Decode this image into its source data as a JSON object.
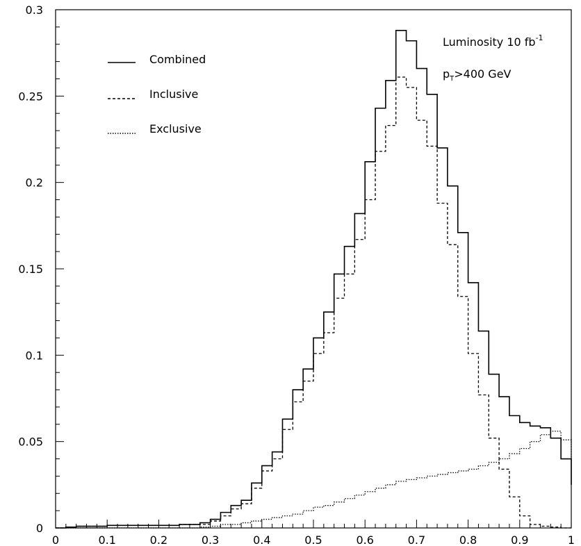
{
  "chart_data": {
    "type": "line",
    "step": true,
    "title": "",
    "xlabel": "",
    "ylabel": "",
    "xlim": [
      0,
      1
    ],
    "ylim": [
      0,
      0.3
    ],
    "grid": false,
    "xticks": [
      "0",
      "0.1",
      "0.2",
      "0.3",
      "0.4",
      "0.5",
      "0.6",
      "0.7",
      "0.8",
      "0.9",
      "1"
    ],
    "yticks": [
      "0",
      "0.05",
      "0.1",
      "0.15",
      "0.2",
      "0.25",
      "0.3"
    ],
    "bin_edges": [
      0,
      0.02,
      0.04,
      0.06,
      0.08,
      0.1,
      0.12,
      0.14,
      0.16,
      0.18,
      0.2,
      0.22,
      0.24,
      0.26,
      0.28,
      0.3,
      0.32,
      0.34,
      0.36,
      0.38,
      0.4,
      0.42,
      0.44,
      0.46,
      0.48,
      0.5,
      0.52,
      0.54,
      0.56,
      0.58,
      0.6,
      0.62,
      0.64,
      0.66,
      0.68,
      0.7,
      0.72,
      0.74,
      0.76,
      0.78,
      0.8,
      0.82,
      0.84,
      0.86,
      0.88,
      0.9,
      0.92,
      0.94,
      0.96,
      0.98,
      1.0
    ],
    "series": [
      {
        "name": "Combined",
        "style": "solid",
        "values": [
          0.0,
          0.0005,
          0.001,
          0.001,
          0.001,
          0.0015,
          0.0015,
          0.0015,
          0.0015,
          0.0015,
          0.0015,
          0.0015,
          0.002,
          0.002,
          0.003,
          0.005,
          0.009,
          0.013,
          0.016,
          0.026,
          0.036,
          0.044,
          0.063,
          0.08,
          0.092,
          0.11,
          0.125,
          0.147,
          0.163,
          0.182,
          0.212,
          0.243,
          0.259,
          0.288,
          0.282,
          0.266,
          0.251,
          0.22,
          0.198,
          0.171,
          0.142,
          0.114,
          0.089,
          0.076,
          0.065,
          0.061,
          0.059,
          0.058,
          0.052,
          0.04,
          0.025
        ]
      },
      {
        "name": "Inclusive",
        "style": "dashed",
        "values": [
          0.0,
          0.0005,
          0.001,
          0.001,
          0.001,
          0.0015,
          0.0015,
          0.0015,
          0.0015,
          0.0015,
          0.0015,
          0.0015,
          0.002,
          0.002,
          0.002,
          0.004,
          0.007,
          0.011,
          0.014,
          0.023,
          0.033,
          0.04,
          0.057,
          0.073,
          0.085,
          0.101,
          0.113,
          0.133,
          0.147,
          0.167,
          0.19,
          0.218,
          0.233,
          0.261,
          0.255,
          0.236,
          0.221,
          0.188,
          0.164,
          0.134,
          0.101,
          0.077,
          0.052,
          0.034,
          0.018,
          0.007,
          0.002,
          0.001,
          0.0005,
          0.0,
          0.0
        ]
      },
      {
        "name": "Exclusive",
        "style": "dotted",
        "values": [
          0.0,
          0.0,
          0.0,
          0.0,
          0.0,
          0.0,
          0.0,
          0.0,
          0.0,
          0.0,
          0.0,
          0.0,
          0.0,
          0.0,
          0.0005,
          0.001,
          0.002,
          0.002,
          0.003,
          0.004,
          0.005,
          0.006,
          0.007,
          0.008,
          0.01,
          0.012,
          0.013,
          0.015,
          0.017,
          0.019,
          0.021,
          0.023,
          0.025,
          0.027,
          0.028,
          0.029,
          0.03,
          0.031,
          0.032,
          0.033,
          0.034,
          0.036,
          0.038,
          0.04,
          0.043,
          0.046,
          0.05,
          0.054,
          0.056,
          0.051,
          0.04
        ]
      }
    ],
    "legend": {
      "placement": "top-left",
      "entries": [
        {
          "label": "Combined",
          "style": "solid"
        },
        {
          "label": "Inclusive",
          "style": "dashed"
        },
        {
          "label": "Exclusive",
          "style": "dotted"
        }
      ]
    },
    "annotations": {
      "luminosity_main": "Luminosity 10 fb",
      "luminosity_sup": "-1",
      "pt_main": "p",
      "pt_sub": "T",
      "pt_rest": ">400 GeV"
    }
  }
}
